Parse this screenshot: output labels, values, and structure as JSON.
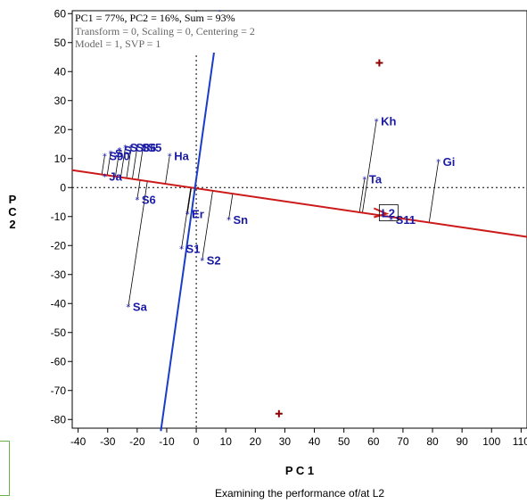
{
  "chart_data": {
    "type": "scatter",
    "info_lines": [
      "PC1 = 77%, PC2 = 16%, Sum = 93%",
      "Transform = 0, Scaling = 0, Centering = 2",
      "Model = 1, SVP = 1"
    ],
    "xlabel": "P C 1",
    "ylabel": "P C 2",
    "caption": "Examining the performance of/at L2",
    "xlim": [
      -42,
      112
    ],
    "ylim": [
      -83,
      61
    ],
    "x_ticks": [
      -40,
      -30,
      -20,
      -10,
      0,
      10,
      20,
      30,
      40,
      50,
      60,
      70,
      80,
      90,
      100,
      110
    ],
    "y_ticks": [
      60,
      50,
      40,
      30,
      20,
      10,
      0,
      -10,
      -20,
      -30,
      -40,
      -50,
      -60,
      -70,
      -80
    ],
    "genotypes": [
      {
        "name": "S90",
        "x": -31,
        "y": 11
      },
      {
        "name": "S",
        "x": -29,
        "y": 12
      },
      {
        "name": "S",
        "x": -26,
        "y": 13
      },
      {
        "name": "S",
        "x": -24,
        "y": 14
      },
      {
        "name": "S86",
        "x": -22,
        "y": 14
      },
      {
        "name": "S",
        "x": -20,
        "y": 14
      },
      {
        "name": "S5",
        "x": -18,
        "y": 14
      },
      {
        "name": "Ja",
        "x": -31,
        "y": 4
      },
      {
        "name": "Ha",
        "x": -9,
        "y": 11
      },
      {
        "name": "S6",
        "x": -20,
        "y": -4
      },
      {
        "name": "Er",
        "x": -3,
        "y": -9
      },
      {
        "name": "S1",
        "x": -5,
        "y": -21
      },
      {
        "name": "S2",
        "x": 2,
        "y": -25
      },
      {
        "name": "Sa",
        "x": -23,
        "y": -41
      },
      {
        "name": "Sn",
        "x": 11,
        "y": -11
      },
      {
        "name": "Kh",
        "x": 61,
        "y": 23
      },
      {
        "name": "Ta",
        "x": 57,
        "y": 3
      },
      {
        "name": "Gi",
        "x": 82,
        "y": 9
      },
      {
        "name": "S11",
        "x": 66,
        "y": -11
      }
    ],
    "environments": [
      {
        "name": "",
        "x": 62,
        "y": 43
      },
      {
        "name": "",
        "x": 28,
        "y": -78
      }
    ],
    "highlight": {
      "name": "L2",
      "x": 65,
      "y": -9
    },
    "ata_line": {
      "from": [
        -42,
        6
      ],
      "to": [
        112,
        -17
      ]
    },
    "perpendicular_line": {
      "from": [
        -12,
        -84
      ],
      "to": [
        8,
        61
      ]
    },
    "colors": {
      "genotype": "#1a1aa6",
      "environment": "#8b0000",
      "ata": "#cc1a1a",
      "perpendicular": "#1a3cc8",
      "projection": "#000000"
    }
  }
}
